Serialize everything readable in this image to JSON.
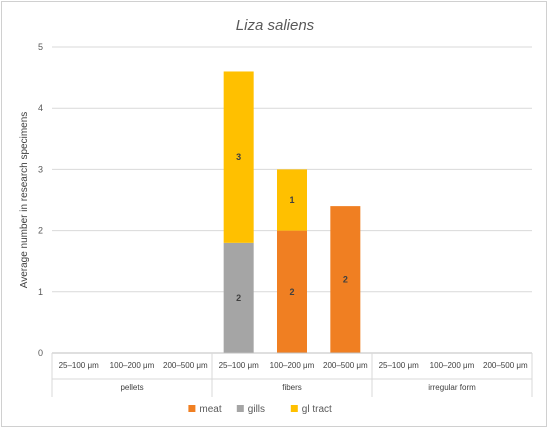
{
  "chart_data": {
    "type": "bar",
    "stacked": true,
    "title": "Liza saliens",
    "ylabel": "Average number in research specimens",
    "xlabel": "",
    "ylim": [
      0,
      5
    ],
    "yticks": [
      0,
      1,
      2,
      3,
      4,
      5
    ],
    "grid": true,
    "legend_position": "bottom",
    "groups": [
      {
        "label": "pellets",
        "categories": [
          "25–100 μm",
          "100–200 μm",
          "200–500 μm"
        ]
      },
      {
        "label": "fibers",
        "categories": [
          "25–100 μm",
          "100–200 μm",
          "200–500 μm"
        ]
      },
      {
        "label": "irregular form",
        "categories": [
          "25–100 μm",
          "100–200 μm",
          "200–500 μm"
        ]
      }
    ],
    "series": [
      {
        "name": "meat",
        "color": "#f07f22",
        "values": [
          0,
          0,
          0,
          0,
          2.0,
          2.4,
          0,
          0,
          0
        ],
        "labels": [
          "",
          "",
          "",
          "",
          "2",
          "2",
          "",
          "",
          ""
        ]
      },
      {
        "name": "gills",
        "color": "#a5a5a5",
        "values": [
          0,
          0,
          0,
          1.8,
          0,
          0,
          0,
          0,
          0
        ],
        "labels": [
          "",
          "",
          "",
          "2",
          "",
          "",
          "",
          "",
          ""
        ]
      },
      {
        "name": "gl tract",
        "color": "#ffc000",
        "values": [
          0,
          0,
          0,
          2.8,
          1.0,
          0,
          0,
          0,
          0
        ],
        "labels": [
          "",
          "",
          "",
          "3",
          "1",
          "",
          "",
          "",
          ""
        ]
      }
    ]
  }
}
